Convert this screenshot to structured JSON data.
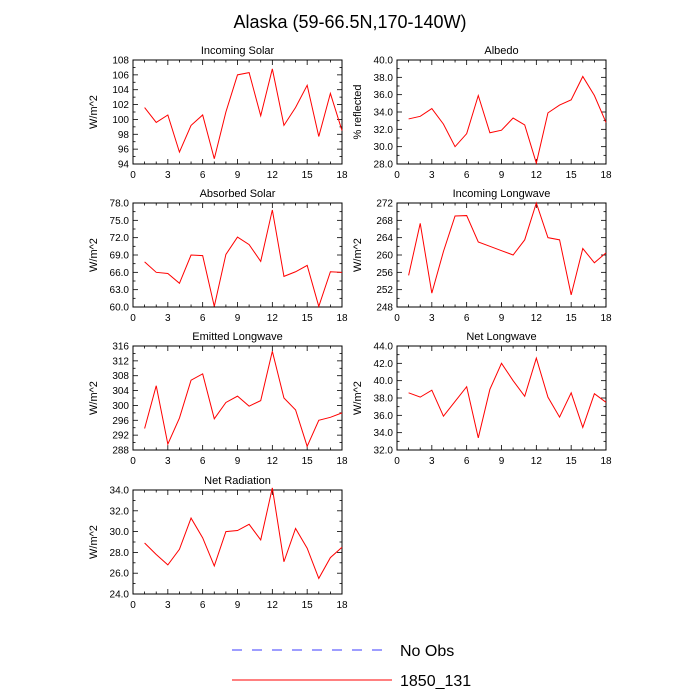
{
  "figure": {
    "title": "Alaska (59-66.5N,170-140W)"
  },
  "legend": {
    "entries": [
      {
        "label": "No Obs",
        "color": "#3b3bff",
        "style": "dashed"
      },
      {
        "label": "1850_131",
        "color": "#ff0000",
        "style": "solid"
      }
    ]
  },
  "chart_data": [
    {
      "type": "line",
      "title": "Incoming Solar",
      "ylabel": "W/m^2",
      "xlim": [
        0,
        18
      ],
      "xticks": [
        0,
        3,
        6,
        9,
        12,
        15,
        18
      ],
      "xtick_labels": [
        "0",
        "3",
        "6",
        "9",
        "12",
        "15",
        "18"
      ],
      "ylim": [
        94,
        108
      ],
      "yticks": [
        94,
        96,
        98,
        100,
        102,
        104,
        106,
        108
      ],
      "ytick_labels": [
        "94",
        "96",
        "98",
        "100",
        "102",
        "104",
        "106",
        "108"
      ],
      "series": [
        {
          "name": "1850_131",
          "color": "#ff0000",
          "x": [
            1,
            2,
            3,
            4,
            5,
            6,
            7,
            8,
            9,
            10,
            11,
            12,
            13,
            14,
            15,
            16,
            17,
            18
          ],
          "values": [
            101.6,
            99.6,
            100.6,
            95.6,
            99.2,
            100.6,
            94.7,
            101.0,
            106.0,
            106.3,
            100.5,
            106.8,
            99.2,
            101.6,
            104.6,
            97.7,
            103.5,
            98.5
          ]
        }
      ]
    },
    {
      "type": "line",
      "title": "Albedo",
      "ylabel": "% reflected",
      "xlim": [
        0,
        18
      ],
      "xticks": [
        0,
        3,
        6,
        9,
        12,
        15,
        18
      ],
      "xtick_labels": [
        "0",
        "3",
        "6",
        "9",
        "12",
        "15",
        "18"
      ],
      "ylim": [
        28,
        40
      ],
      "yticks": [
        28,
        30,
        32,
        34,
        36,
        38,
        40
      ],
      "ytick_labels": [
        "28.0",
        "30.0",
        "32.0",
        "34.0",
        "36.0",
        "38.0",
        "40.0"
      ],
      "series": [
        {
          "name": "1850_131",
          "color": "#ff0000",
          "x": [
            1,
            2,
            3,
            4,
            5,
            6,
            7,
            8,
            9,
            10,
            11,
            12,
            13,
            14,
            15,
            16,
            17,
            18
          ],
          "values": [
            33.2,
            33.5,
            34.4,
            32.6,
            30.0,
            31.5,
            35.9,
            31.6,
            31.9,
            33.3,
            32.5,
            28.1,
            33.9,
            34.8,
            35.4,
            38.1,
            35.9,
            32.8
          ]
        }
      ]
    },
    {
      "type": "line",
      "title": "Absorbed Solar",
      "ylabel": "W/m^2",
      "xlim": [
        0,
        18
      ],
      "xticks": [
        0,
        3,
        6,
        9,
        12,
        15,
        18
      ],
      "xtick_labels": [
        "0",
        "3",
        "6",
        "9",
        "12",
        "15",
        "18"
      ],
      "ylim": [
        60,
        78
      ],
      "yticks": [
        60,
        63,
        66,
        69,
        72,
        75,
        78
      ],
      "ytick_labels": [
        "60.0",
        "63.0",
        "66.0",
        "69.0",
        "72.0",
        "75.0",
        "78.0"
      ],
      "series": [
        {
          "name": "1850_131",
          "color": "#ff0000",
          "x": [
            1,
            2,
            3,
            4,
            5,
            6,
            7,
            8,
            9,
            10,
            11,
            12,
            13,
            14,
            15,
            16,
            17,
            18
          ],
          "values": [
            67.8,
            66.0,
            65.8,
            64.1,
            69.0,
            68.9,
            60.1,
            69.1,
            72.1,
            70.8,
            67.9,
            76.8,
            65.3,
            66.1,
            67.2,
            60.1,
            66.1,
            66.0
          ]
        }
      ]
    },
    {
      "type": "line",
      "title": "Incoming Longwave",
      "ylabel": "W/m^2",
      "xlim": [
        0,
        18
      ],
      "xticks": [
        0,
        3,
        6,
        9,
        12,
        15,
        18
      ],
      "xtick_labels": [
        "0",
        "3",
        "6",
        "9",
        "12",
        "15",
        "18"
      ],
      "ylim": [
        248,
        272
      ],
      "yticks": [
        248,
        252,
        256,
        260,
        264,
        268,
        272
      ],
      "ytick_labels": [
        "248",
        "252",
        "256",
        "260",
        "264",
        "268",
        "272"
      ],
      "series": [
        {
          "name": "1850_131",
          "color": "#ff0000",
          "x": [
            1,
            2,
            3,
            4,
            5,
            6,
            7,
            8,
            9,
            10,
            11,
            12,
            13,
            14,
            15,
            16,
            17,
            18
          ],
          "values": [
            255.3,
            267.3,
            251.2,
            260.8,
            269.0,
            269.1,
            263.0,
            262.0,
            261.0,
            260.0,
            263.5,
            272.0,
            264.0,
            263.5,
            250.8,
            261.5,
            258.2,
            260.5
          ]
        }
      ]
    },
    {
      "type": "line",
      "title": "Emitted Longwave",
      "ylabel": "W/m^2",
      "xlim": [
        0,
        18
      ],
      "xticks": [
        0,
        3,
        6,
        9,
        12,
        15,
        18
      ],
      "xtick_labels": [
        "0",
        "3",
        "6",
        "9",
        "12",
        "15",
        "18"
      ],
      "ylim": [
        288,
        316
      ],
      "yticks": [
        288,
        292,
        296,
        300,
        304,
        308,
        312,
        316
      ],
      "ytick_labels": [
        "288",
        "292",
        "296",
        "300",
        "304",
        "308",
        "312",
        "316"
      ],
      "series": [
        {
          "name": "1850_131",
          "color": "#ff0000",
          "x": [
            1,
            2,
            3,
            4,
            5,
            6,
            7,
            8,
            9,
            10,
            11,
            12,
            13,
            14,
            15,
            16,
            17,
            18
          ],
          "values": [
            293.8,
            305.3,
            289.6,
            296.6,
            306.8,
            308.5,
            296.4,
            300.8,
            302.5,
            299.8,
            301.3,
            314.6,
            302.0,
            298.8,
            289.0,
            296.0,
            296.8,
            298.0
          ]
        }
      ]
    },
    {
      "type": "line",
      "title": "Net Longwave",
      "ylabel": "W/m^2",
      "xlim": [
        0,
        18
      ],
      "xticks": [
        0,
        3,
        6,
        9,
        12,
        15,
        18
      ],
      "xtick_labels": [
        "0",
        "3",
        "6",
        "9",
        "12",
        "15",
        "18"
      ],
      "ylim": [
        32,
        44
      ],
      "yticks": [
        32,
        34,
        36,
        38,
        40,
        42,
        44
      ],
      "ytick_labels": [
        "32.0",
        "34.0",
        "36.0",
        "38.0",
        "40.0",
        "42.0",
        "44.0"
      ],
      "series": [
        {
          "name": "1850_131",
          "color": "#ff0000",
          "x": [
            1,
            2,
            3,
            4,
            5,
            6,
            7,
            8,
            9,
            10,
            11,
            12,
            13,
            14,
            15,
            16,
            17,
            18
          ],
          "values": [
            38.6,
            38.1,
            38.9,
            35.9,
            37.6,
            39.3,
            33.4,
            39.0,
            42.0,
            40.0,
            38.2,
            42.6,
            38.1,
            35.8,
            38.6,
            34.6,
            38.5,
            37.5
          ]
        }
      ]
    },
    {
      "type": "line",
      "title": "Net Radiation",
      "ylabel": "W/m^2",
      "xlim": [
        0,
        18
      ],
      "xticks": [
        0,
        3,
        6,
        9,
        12,
        15,
        18
      ],
      "xtick_labels": [
        "0",
        "3",
        "6",
        "9",
        "12",
        "15",
        "18"
      ],
      "ylim": [
        24,
        34
      ],
      "yticks": [
        24,
        26,
        28,
        30,
        32,
        34
      ],
      "ytick_labels": [
        "24.0",
        "26.0",
        "28.0",
        "30.0",
        "32.0",
        "34.0"
      ],
      "series": [
        {
          "name": "1850_131",
          "color": "#ff0000",
          "x": [
            1,
            2,
            3,
            4,
            5,
            6,
            7,
            8,
            9,
            10,
            11,
            12,
            13,
            14,
            15,
            16,
            17,
            18
          ],
          "values": [
            28.9,
            27.8,
            26.8,
            28.3,
            31.3,
            29.4,
            26.7,
            30.0,
            30.1,
            30.7,
            29.2,
            34.2,
            27.1,
            30.3,
            28.4,
            25.5,
            27.5,
            28.5
          ]
        }
      ]
    }
  ]
}
